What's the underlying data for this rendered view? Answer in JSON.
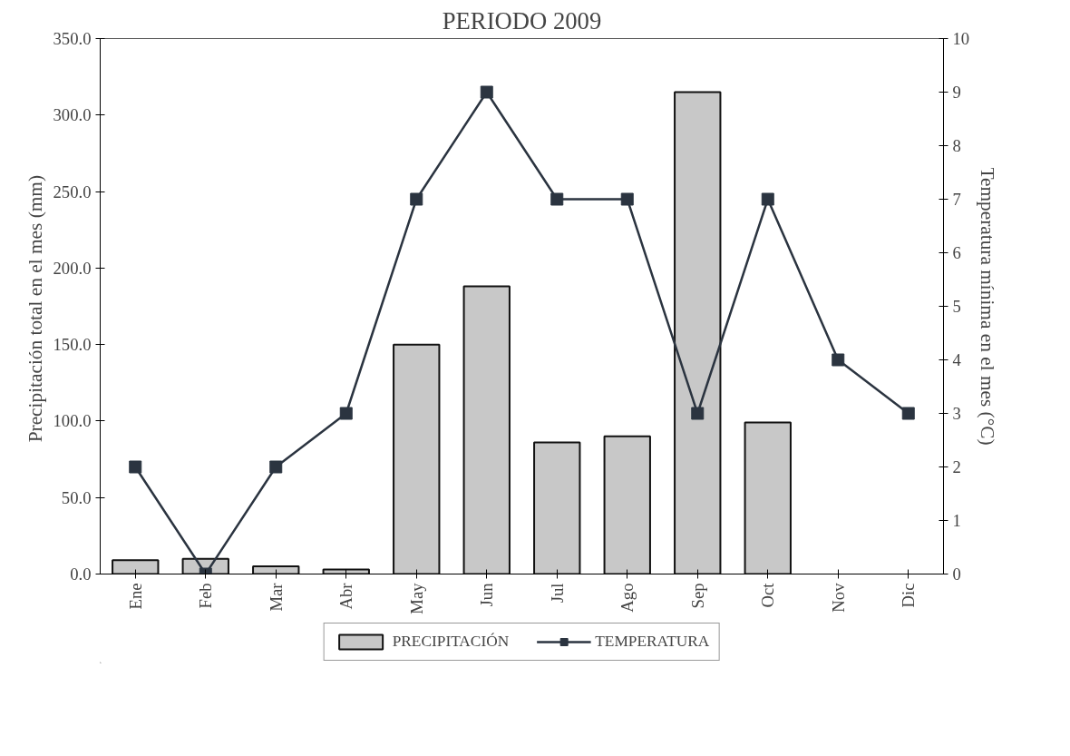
{
  "chart_data": {
    "type": "bar",
    "title": "PERIODO 2009",
    "categories": [
      "Ene",
      "Feb",
      "Mar",
      "Abr",
      "May",
      "Jun",
      "Jul",
      "Ago",
      "Sep",
      "Oct",
      "Nov",
      "Dic"
    ],
    "ylabel": "Precipitación total en el mes  (mm)",
    "y2label": "Temperatura mínima en el mes (°C)",
    "series": [
      {
        "name": "PRECIPITACIÓN",
        "color": "#c8c8c8",
        "values": [
          9,
          10,
          5,
          3,
          150,
          188,
          86,
          90,
          315,
          99,
          null,
          null
        ]
      },
      {
        "name": "TEMPERATURA",
        "type": "line",
        "axis": "y2",
        "color": "#2b3440",
        "values": [
          2,
          0,
          2,
          3,
          7,
          9,
          7,
          7,
          3,
          7,
          4,
          3
        ]
      }
    ],
    "ylim": [
      0,
      350
    ],
    "yticks": [
      {
        "value": 0,
        "label": "0.0"
      },
      {
        "value": 50,
        "label": "50.0"
      },
      {
        "value": 100,
        "label": "100.0"
      },
      {
        "value": 150,
        "label": "150.0"
      },
      {
        "value": 200,
        "label": "200.0"
      },
      {
        "value": 250,
        "label": "250.0"
      },
      {
        "value": 300,
        "label": "300.0"
      },
      {
        "value": 350,
        "label": "350.0"
      }
    ],
    "y2lim": [
      0,
      10
    ],
    "y2ticks": [
      0,
      1,
      2,
      3,
      4,
      5,
      6,
      7,
      8,
      9,
      10
    ],
    "marker": "square",
    "legend": "bottom",
    "grid": false
  }
}
